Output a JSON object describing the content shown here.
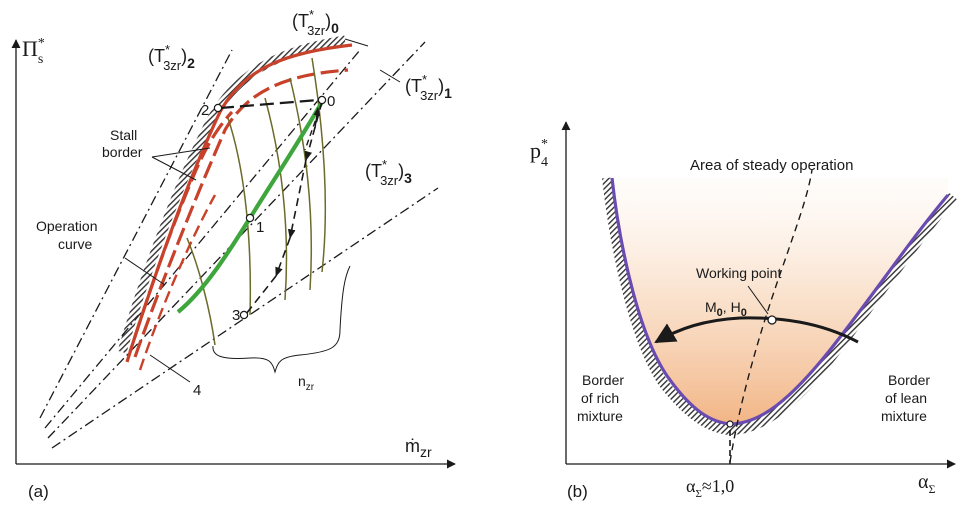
{
  "left_panel": {
    "panel_label": "(a)",
    "y_axis_symbol": "Π",
    "y_axis_sup": "*",
    "y_axis_sub": "s",
    "x_axis_symbol": "ṁ",
    "x_axis_sub": "zr",
    "temp_symbol": "(T",
    "temp_sup": "*",
    "temp_sub": "3zr",
    "temp_close": ")",
    "temp_index_0": "0",
    "temp_index_1": "1",
    "temp_index_2": "2",
    "temp_index_3": "3",
    "stall_line1": "Stall",
    "stall_line2": "border",
    "operation_line1": "Operation",
    "operation_line2": "curve",
    "point_0": "0",
    "point_1": "1",
    "point_2": "2",
    "point_3": "3",
    "point_4": "4",
    "speed_symbol": "n",
    "speed_sub": "zr"
  },
  "right_panel": {
    "panel_label": "(b)",
    "y_axis_symbol": "p",
    "y_axis_sup": "*",
    "y_axis_sub": "4",
    "x_axis_symbol": "α",
    "x_axis_sub": "Σ",
    "alpha_mark": "≈1,0",
    "steady_area": "Area of steady operation",
    "working_point": "Working point",
    "m_symbol": "M",
    "m_sub": "0",
    "h_symbol": "H",
    "h_sub": "0",
    "rich_line1": "Border",
    "rich_line2": "of rich",
    "rich_line3": "mixture",
    "lean_line1": "Border",
    "lean_line2": "of lean",
    "lean_line3": "mixture"
  },
  "colors": {
    "stall_red": "#c8412a",
    "operation_green": "#3ea63c",
    "speed_olive": "#6b6b2a",
    "border_purple": "#6a4bb0",
    "fill_orange": "#f3b98a"
  }
}
